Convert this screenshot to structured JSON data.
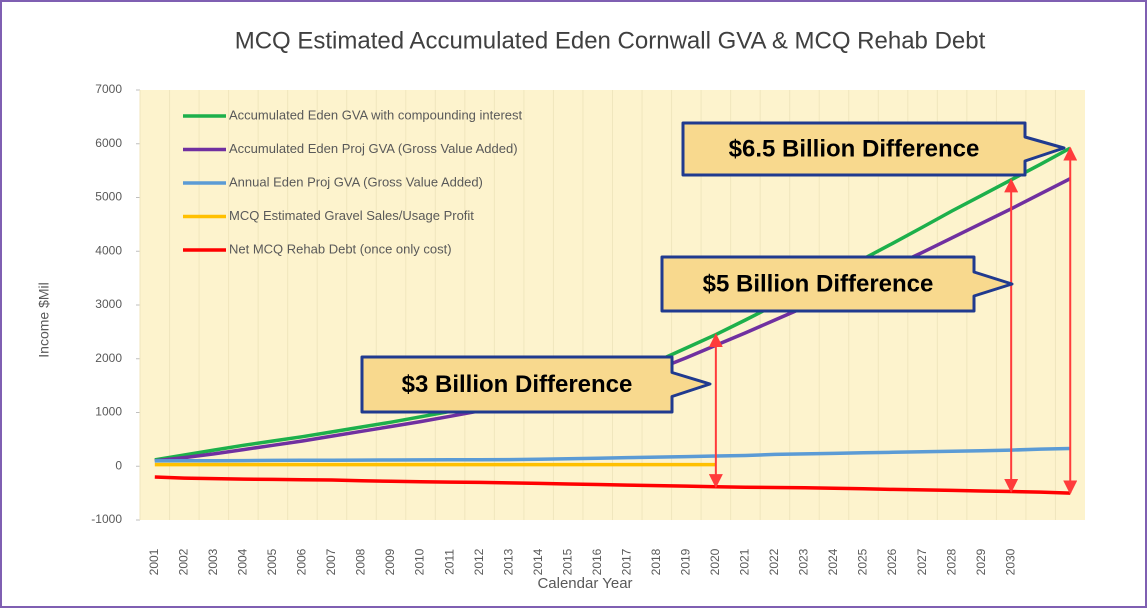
{
  "chart_data": {
    "type": "line",
    "title": "MCQ Estimated Accumulated Eden Cornwall GVA & MCQ Rehab Debt",
    "xlabel": "Calendar Year",
    "ylabel": "Income $Mil",
    "categories": [
      "2001",
      "2002",
      "2003",
      "2004",
      "2005",
      "2006",
      "2007",
      "2008",
      "2009",
      "2010",
      "2011",
      "2012",
      "2013",
      "2014",
      "2015",
      "2016",
      "2017",
      "2018",
      "2019",
      "2020",
      "2021",
      "2022",
      "2023",
      "2024",
      "2025",
      "2026",
      "2027",
      "2028",
      "2029",
      "2030",
      null,
      null
    ],
    "ylim": [
      -1000,
      7000
    ],
    "yticks": [
      -1000,
      0,
      1000,
      2000,
      3000,
      4000,
      5000,
      6000,
      7000
    ],
    "legend": "upper left",
    "series": [
      {
        "name": "Accumulated Eden GVA with compounding interest",
        "color": "#1db04b",
        "values": [
          120,
          210,
          300,
          390,
          470,
          550,
          640,
          730,
          820,
          920,
          1020,
          1130,
          1240,
          1360,
          1490,
          1620,
          1760,
          1950,
          2200,
          2450,
          2720,
          3000,
          3280,
          3560,
          3860,
          4150,
          4450,
          4750,
          5040,
          5330,
          5620,
          5920
        ]
      },
      {
        "name": "Accumulated Eden Proj GVA (Gross Value Added)",
        "color": "#7030a0",
        "values": [
          100,
          160,
          230,
          310,
          390,
          470,
          560,
          650,
          740,
          830,
          930,
          1030,
          1130,
          1240,
          1350,
          1480,
          1640,
          1800,
          2020,
          2250,
          2480,
          2720,
          2960,
          3210,
          3460,
          3720,
          3980,
          4250,
          4520,
          4790,
          5070,
          5350
        ]
      },
      {
        "name": "Annual Eden Proj GVA (Gross Value Added)",
        "color": "#5b9bd5",
        "values": [
          100,
          102,
          104,
          106,
          108,
          110,
          112,
          114,
          116,
          118,
          120,
          122,
          124,
          130,
          140,
          150,
          160,
          170,
          180,
          190,
          200,
          220,
          230,
          240,
          250,
          260,
          270,
          280,
          290,
          300,
          320,
          330
        ]
      },
      {
        "name": "MCQ Estimated Gravel Sales/Usage Profit",
        "color": "#ffc000",
        "values": [
          30,
          30,
          30,
          30,
          30,
          30,
          30,
          30,
          30,
          30,
          30,
          30,
          30,
          30,
          30,
          30,
          30,
          30,
          30,
          30,
          null,
          null,
          null,
          null,
          null,
          null,
          null,
          null,
          null,
          null,
          null,
          null
        ]
      },
      {
        "name": "Net MCQ Rehab Debt (once only cost)",
        "color": "#ff0000",
        "values": [
          -200,
          -220,
          -230,
          -240,
          -245,
          -250,
          -255,
          -270,
          -280,
          -290,
          -295,
          -300,
          -310,
          -320,
          -330,
          -340,
          -350,
          -360,
          -370,
          -380,
          -390,
          -395,
          -400,
          -410,
          -420,
          -430,
          -440,
          -450,
          -460,
          -470,
          -480,
          -500
        ]
      }
    ],
    "annotations": [
      "$6.5 Billion Difference",
      "$5 Billion Difference",
      "$3 Billion Difference"
    ]
  }
}
